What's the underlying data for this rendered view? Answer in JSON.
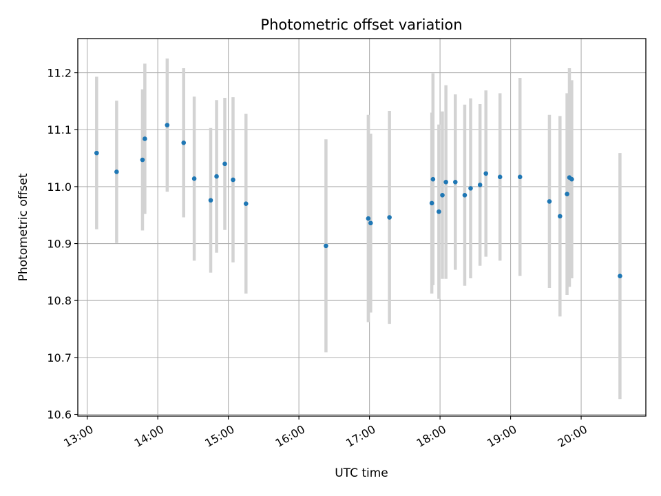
{
  "chart_data": {
    "type": "scatter",
    "title": "Photometric offset variation",
    "xlabel": "UTC time",
    "ylabel": "Photometric offset",
    "x_unit": "hours",
    "xlim": [
      "12:52",
      "20:55"
    ],
    "ylim": [
      10.597,
      11.26
    ],
    "x_ticks": [
      "13:00",
      "14:00",
      "15:00",
      "16:00",
      "17:00",
      "18:00",
      "19:00",
      "20:00"
    ],
    "y_ticks": [
      10.6,
      10.7,
      10.8,
      10.9,
      11.0,
      11.1,
      11.2
    ],
    "y_tick_labels": [
      "10.6",
      "10.7",
      "10.8",
      "10.9",
      "11.0",
      "11.1",
      "11.2"
    ],
    "grid": true,
    "colors": {
      "point": "#1f77b4",
      "errorbar": "#d3d3d3",
      "grid": "#b0b0b0"
    },
    "points": [
      {
        "x": "13:08",
        "y": 11.059,
        "err": 0.134
      },
      {
        "x": "13:25",
        "y": 11.026,
        "err": 0.125
      },
      {
        "x": "13:47",
        "y": 11.047,
        "err": 0.124
      },
      {
        "x": "13:49",
        "y": 11.084,
        "err": 0.132
      },
      {
        "x": "14:08",
        "y": 11.108,
        "err": 0.117
      },
      {
        "x": "14:22",
        "y": 11.077,
        "err": 0.131
      },
      {
        "x": "14:31",
        "y": 11.014,
        "err": 0.144
      },
      {
        "x": "14:45",
        "y": 10.976,
        "err": 0.127
      },
      {
        "x": "14:50",
        "y": 11.018,
        "err": 0.134
      },
      {
        "x": "14:57",
        "y": 11.04,
        "err": 0.116
      },
      {
        "x": "15:04",
        "y": 11.012,
        "err": 0.145
      },
      {
        "x": "15:15",
        "y": 10.97,
        "err": 0.158
      },
      {
        "x": "16:23",
        "y": 10.896,
        "err": 0.187
      },
      {
        "x": "16:59",
        "y": 10.944,
        "err": 0.182
      },
      {
        "x": "17:01",
        "y": 10.936,
        "err": 0.157
      },
      {
        "x": "17:17",
        "y": 10.946,
        "err": 0.187
      },
      {
        "x": "17:53",
        "y": 10.971,
        "err": 0.159
      },
      {
        "x": "17:54",
        "y": 11.013,
        "err": 0.186
      },
      {
        "x": "17:59",
        "y": 10.956,
        "err": 0.153
      },
      {
        "x": "18:02",
        "y": 10.985,
        "err": 0.147
      },
      {
        "x": "18:05",
        "y": 11.008,
        "err": 0.17
      },
      {
        "x": "18:13",
        "y": 11.008,
        "err": 0.154
      },
      {
        "x": "18:21",
        "y": 10.985,
        "err": 0.159
      },
      {
        "x": "18:26",
        "y": 10.997,
        "err": 0.158
      },
      {
        "x": "18:34",
        "y": 11.003,
        "err": 0.142
      },
      {
        "x": "18:39",
        "y": 11.023,
        "err": 0.146
      },
      {
        "x": "18:51",
        "y": 11.017,
        "err": 0.147
      },
      {
        "x": "19:08",
        "y": 11.017,
        "err": 0.174
      },
      {
        "x": "19:33",
        "y": 10.974,
        "err": 0.152
      },
      {
        "x": "19:42",
        "y": 10.948,
        "err": 0.176
      },
      {
        "x": "19:48",
        "y": 10.987,
        "err": 0.177
      },
      {
        "x": "19:50",
        "y": 11.016,
        "err": 0.192
      },
      {
        "x": "19:52",
        "y": 11.013,
        "err": 0.174
      },
      {
        "x": "20:33",
        "y": 10.843,
        "err": 0.216
      }
    ]
  }
}
